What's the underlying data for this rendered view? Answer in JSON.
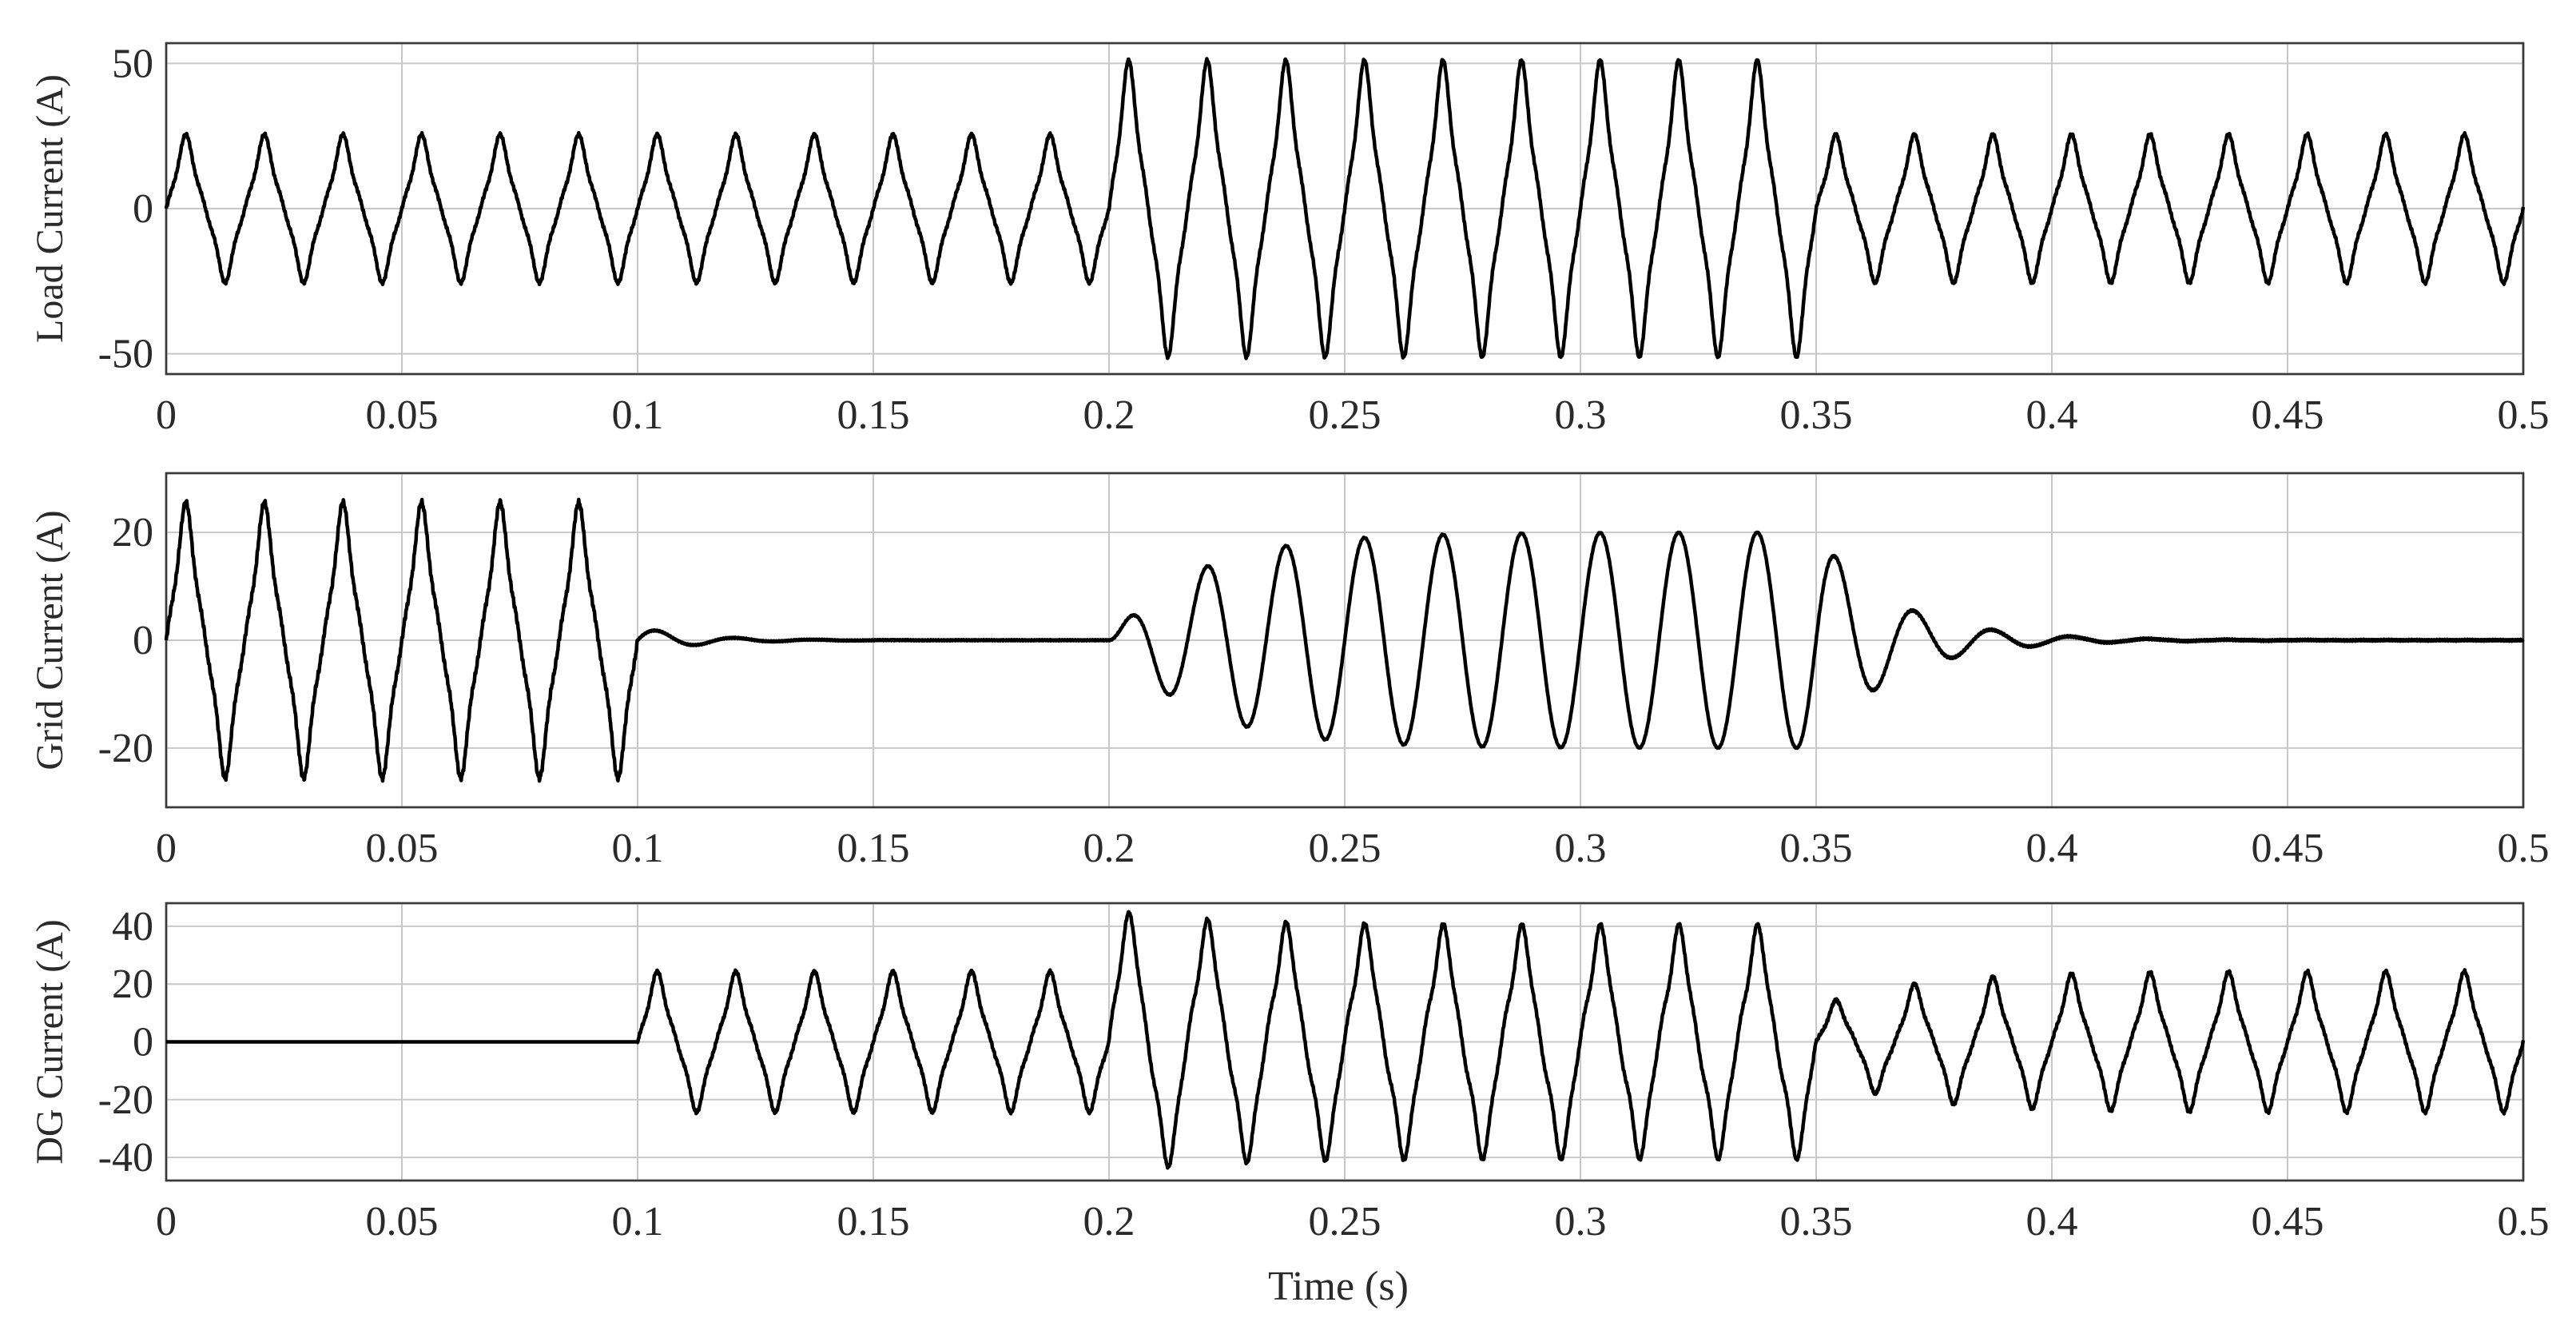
{
  "chart_data": [
    {
      "type": "line",
      "ylabel": "Load Current (A)",
      "xlabel": "",
      "xlim": [
        0,
        0.5
      ],
      "ylim": [
        -57,
        57
      ],
      "xticks": [
        0,
        0.05,
        0.1,
        0.15,
        0.2,
        0.25,
        0.3,
        0.35,
        0.4,
        0.45,
        0.5
      ],
      "xtick_labels": [
        "0",
        "0.05",
        "0.1",
        "0.15",
        "0.2",
        "0.25",
        "0.3",
        "0.35",
        "0.4",
        "0.45",
        "0.5"
      ],
      "yticks": [
        -50,
        0,
        50
      ],
      "ytick_labels": [
        "-50",
        "0",
        "50"
      ],
      "grid": true,
      "frequency_hz": 60,
      "waveform": "distorted (flat-topped) nonlinear-load current",
      "segments": [
        {
          "x": [
            0,
            0.2
          ],
          "peak_amplitude": 22
        },
        {
          "x": [
            0.2,
            0.35
          ],
          "peak_amplitude": 44
        },
        {
          "x": [
            0.35,
            0.5
          ],
          "peak_amplitude": 22
        }
      ]
    },
    {
      "type": "line",
      "ylabel": "Grid Current (A)",
      "xlabel": "",
      "xlim": [
        0,
        0.5
      ],
      "ylim": [
        -31,
        31
      ],
      "xticks": [
        0,
        0.05,
        0.1,
        0.15,
        0.2,
        0.25,
        0.3,
        0.35,
        0.4,
        0.45,
        0.5
      ],
      "xtick_labels": [
        "0",
        "0.05",
        "0.1",
        "0.15",
        "0.2",
        "0.25",
        "0.3",
        "0.35",
        "0.4",
        "0.45",
        "0.5"
      ],
      "yticks": [
        -20,
        0,
        20
      ],
      "ytick_labels": [
        "-20",
        "0",
        "20"
      ],
      "grid": true,
      "frequency_hz": 60,
      "segments": [
        {
          "x": [
            0,
            0.1
          ],
          "waveform": "distorted",
          "peak_amplitude": 22
        },
        {
          "x": [
            0.1,
            0.2
          ],
          "waveform": "decaying sinusoid",
          "peak_amplitude": 2.5
        },
        {
          "x": [
            0.2,
            0.35
          ],
          "waveform": "sinusoid ramping up",
          "peak_amplitude": 20
        },
        {
          "x": [
            0.35,
            0.5
          ],
          "waveform": "decaying sinusoid",
          "peak_amplitude": 20
        }
      ]
    },
    {
      "type": "line",
      "ylabel": "DG Current (A)",
      "xlabel": "Time (s)",
      "xlim": [
        0,
        0.5
      ],
      "ylim": [
        -48,
        48
      ],
      "xticks": [
        0,
        0.05,
        0.1,
        0.15,
        0.2,
        0.25,
        0.3,
        0.35,
        0.4,
        0.45,
        0.5
      ],
      "xtick_labels": [
        "0",
        "0.05",
        "0.1",
        "0.15",
        "0.2",
        "0.25",
        "0.3",
        "0.35",
        "0.4",
        "0.45",
        "0.5"
      ],
      "yticks": [
        -40,
        -20,
        0,
        20,
        40
      ],
      "ytick_labels": [
        "-40",
        "-20",
        "0",
        "20",
        "40"
      ],
      "grid": true,
      "frequency_hz": 60,
      "segments": [
        {
          "x": [
            0,
            0.1
          ],
          "waveform": "zero",
          "peak_amplitude": 0
        },
        {
          "x": [
            0.1,
            0.2
          ],
          "waveform": "distorted",
          "peak_amplitude": 21
        },
        {
          "x": [
            0.2,
            0.35
          ],
          "waveform": "distorted with transient",
          "peak_amplitude": 36,
          "max": 41,
          "min": -38
        },
        {
          "x": [
            0.35,
            0.5
          ],
          "waveform": "distorted, settling",
          "peak_amplitude": 21
        }
      ]
    }
  ]
}
